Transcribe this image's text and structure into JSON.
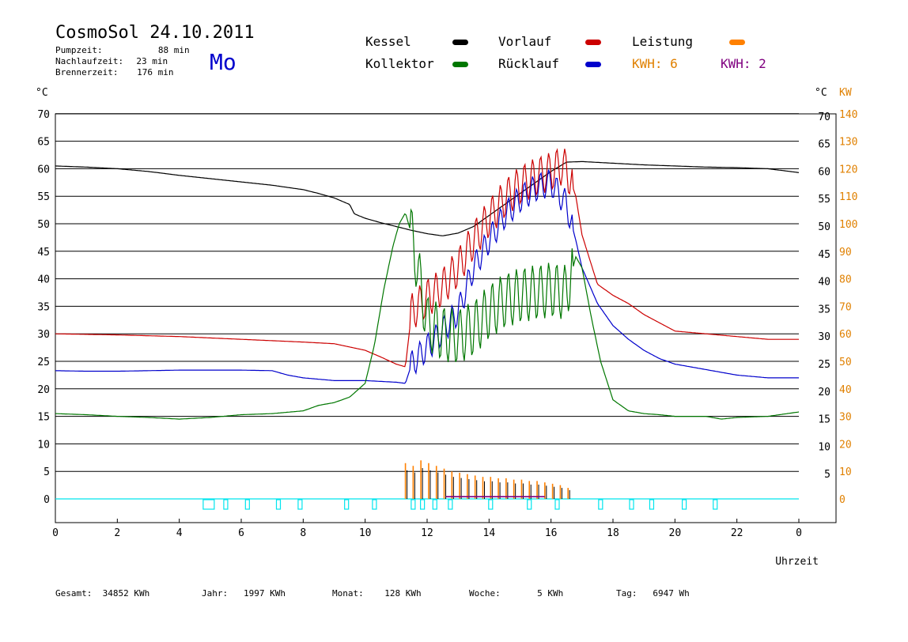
{
  "header": {
    "title": "CosmoSol 24.10.2011",
    "weekday": "Mo",
    "pump_label": "Pumpzeit:",
    "pump_value": "88 min",
    "nachlauf_label": "Nachlaufzeit:",
    "nachlauf_value": "23 min",
    "brenner_label": "Brennerzeit:",
    "brenner_value": "176 min"
  },
  "legend": {
    "kessel": "Kessel",
    "vorlauf": "Vorlauf",
    "leistung": "Leistung",
    "kollektor": "Kollektor",
    "ruecklauf": "Rücklauf",
    "kwh_orange": "KWH: 6",
    "kwh_purple": "KWH: 2"
  },
  "colors": {
    "kessel": "#000000",
    "vorlauf": "#cc0000",
    "leistung": "#ff8000",
    "kollektor": "#007700",
    "ruecklauf": "#0000cc",
    "kwh_purple": "#800080",
    "zero_line": "#00e5ee",
    "right_axis": "#e08000"
  },
  "footer": {
    "gesamt_label": "Gesamt:",
    "gesamt_value": "34852 KWh",
    "jahr_label": "Jahr:",
    "jahr_value": "1997 KWh",
    "monat_label": "Monat:",
    "monat_value": "128 KWh",
    "woche_label": "Woche:",
    "woche_value": "5 KWh",
    "tag_label": "Tag:",
    "tag_value": "6947 Wh"
  },
  "chart_data": {
    "type": "line",
    "xlabel": "Uhrzeit",
    "ylabel_left": "°C",
    "ylabel_right_temp": "°C",
    "ylabel_right_power": "KW",
    "xlim": [
      0,
      24
    ],
    "ylim": [
      -4,
      70
    ],
    "x_ticks": [
      "0",
      "2",
      "4",
      "6",
      "8",
      "10",
      "12",
      "14",
      "16",
      "18",
      "20",
      "22",
      "0"
    ],
    "y_left_ticks": [
      0,
      5,
      10,
      15,
      20,
      25,
      30,
      35,
      40,
      45,
      50,
      55,
      60,
      65,
      70
    ],
    "y_right_temp_ticks": [
      "5",
      "10",
      "15",
      "20",
      "25",
      "30",
      "35",
      "40",
      "45",
      "50",
      "55",
      "60",
      "65",
      "70"
    ],
    "y_right_kw_ticks": [
      "0",
      "10",
      "20",
      "30",
      "40",
      "50",
      "60",
      "70",
      "80",
      "90",
      "100",
      "110",
      "120",
      "130",
      "140"
    ],
    "grid": "horizontal",
    "series": [
      {
        "name": "Kessel",
        "color": "#000000",
        "x": [
          0,
          1,
          2,
          3,
          4,
          5,
          6,
          7,
          8,
          8.5,
          9,
          9.5,
          9.65,
          10,
          10.5,
          11,
          11.5,
          12,
          12.5,
          13,
          13.5,
          14,
          14.5,
          15,
          15.5,
          16,
          16.5,
          17,
          18,
          19,
          20,
          21,
          22,
          23,
          24
        ],
        "y": [
          60.5,
          60.3,
          60.0,
          59.5,
          58.8,
          58.2,
          57.6,
          57.0,
          56.2,
          55.5,
          54.7,
          53.5,
          51.8,
          51.0,
          50.2,
          49.5,
          48.8,
          48.2,
          47.8,
          48.3,
          49.5,
          51.5,
          53.5,
          55.5,
          57.5,
          59.5,
          61.2,
          61.3,
          61.0,
          60.7,
          60.5,
          60.3,
          60.2,
          60.0,
          59.3
        ]
      },
      {
        "name": "Vorlauf",
        "color": "#cc0000",
        "x": [
          0,
          2,
          4,
          6,
          8,
          9,
          10,
          10.5,
          11,
          11.3,
          11.5,
          12,
          12.5,
          13,
          13.5,
          14,
          14.5,
          15,
          15.5,
          16,
          16.3,
          16.5,
          16.8,
          17,
          17.5,
          18,
          18.5,
          19,
          19.5,
          20,
          21,
          22,
          23,
          24
        ],
        "y": [
          30.0,
          29.8,
          29.5,
          29.0,
          28.5,
          28.2,
          27.0,
          25.8,
          24.5,
          24.0,
          34.0,
          36.5,
          38.5,
          42.0,
          47.0,
          51.0,
          54.5,
          57.0,
          58.5,
          59.5,
          60.5,
          60.0,
          55.0,
          48.0,
          39.0,
          37.0,
          35.5,
          33.5,
          32.0,
          30.5,
          30.0,
          29.5,
          29.0,
          29.0
        ]
      },
      {
        "name": "Rücklauf",
        "color": "#0000cc",
        "x": [
          0,
          1,
          2,
          3,
          4,
          5,
          6,
          7,
          7.5,
          8,
          9,
          10,
          11,
          11.3,
          11.5,
          12,
          12.5,
          13,
          13.5,
          14,
          14.5,
          15,
          15.5,
          16,
          16.5,
          16.8,
          17,
          17.5,
          18,
          18.5,
          19,
          19.5,
          20,
          21,
          22,
          23,
          24
        ],
        "y": [
          23.3,
          23.2,
          23.2,
          23.3,
          23.4,
          23.4,
          23.4,
          23.3,
          22.5,
          22.0,
          21.5,
          21.5,
          21.2,
          21.0,
          24.5,
          27.5,
          30.5,
          34.0,
          42.0,
          47.0,
          51.5,
          54.5,
          56.5,
          57.5,
          53.5,
          47.0,
          42.0,
          35.5,
          31.5,
          29.0,
          27.0,
          25.5,
          24.5,
          23.5,
          22.5,
          22.0,
          22.0
        ]
      },
      {
        "name": "Kollektor",
        "color": "#007700",
        "x": [
          0,
          1,
          2,
          3,
          4,
          5,
          6,
          7,
          8,
          8.5,
          9,
          9.5,
          10,
          10.3,
          10.6,
          10.9,
          11.1,
          11.3,
          11.5,
          12,
          12.5,
          13,
          13.5,
          14,
          14.5,
          15,
          15.5,
          16,
          16.5,
          16.8,
          17,
          17.3,
          17.6,
          18,
          18.5,
          19,
          19.5,
          20,
          21,
          21.5,
          22,
          23,
          24
        ],
        "y": [
          15.5,
          15.3,
          15.0,
          14.8,
          14.5,
          14.8,
          15.3,
          15.5,
          16.0,
          17.0,
          17.5,
          18.5,
          21.0,
          28.0,
          38.0,
          46.0,
          50.0,
          52.0,
          48.0,
          32.0,
          30.0,
          29.5,
          31.0,
          34.0,
          36.0,
          37.0,
          37.5,
          38.0,
          37.5,
          44.0,
          42.0,
          33.0,
          25.0,
          18.0,
          16.0,
          15.5,
          15.3,
          15.0,
          15.0,
          14.5,
          14.8,
          15.0,
          15.8
        ]
      }
    ],
    "markers_x": [
      4.95,
      5.5,
      6.2,
      7.2,
      7.9,
      9.4,
      10.3,
      11.55,
      11.85,
      12.25,
      12.75,
      14.05,
      15.3,
      16.2,
      17.6,
      18.6,
      19.25,
      20.3,
      21.3
    ],
    "power_spikes_x": [
      11.3,
      11.55,
      11.8,
      12.05,
      12.3,
      12.55,
      12.8,
      13.05,
      13.3,
      13.55,
      13.8,
      14.05,
      14.3,
      14.55,
      14.8,
      15.05,
      15.3,
      15.55,
      15.8,
      16.05,
      16.3,
      16.55
    ],
    "power_spikes_kw": [
      13,
      12,
      14,
      13,
      12,
      11,
      10,
      9.5,
      9,
      8.5,
      8,
      8,
      7.5,
      7.5,
      7,
      7,
      6.5,
      6.5,
      6,
      5.5,
      5,
      4
    ]
  }
}
